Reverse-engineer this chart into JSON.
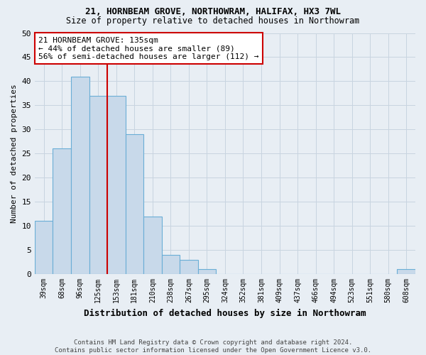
{
  "title1": "21, HORNBEAM GROVE, NORTHOWRAM, HALIFAX, HX3 7WL",
  "title2": "Size of property relative to detached houses in Northowram",
  "xlabel": "Distribution of detached houses by size in Northowram",
  "ylabel": "Number of detached properties",
  "footer1": "Contains HM Land Registry data © Crown copyright and database right 2024.",
  "footer2": "Contains public sector information licensed under the Open Government Licence v3.0.",
  "bin_labels": [
    "39sqm",
    "68sqm",
    "96sqm",
    "125sqm",
    "153sqm",
    "181sqm",
    "210sqm",
    "238sqm",
    "267sqm",
    "295sqm",
    "324sqm",
    "352sqm",
    "381sqm",
    "409sqm",
    "437sqm",
    "466sqm",
    "494sqm",
    "523sqm",
    "551sqm",
    "580sqm",
    "608sqm"
  ],
  "values": [
    11,
    26,
    41,
    37,
    37,
    29,
    12,
    4,
    3,
    1,
    0,
    0,
    0,
    0,
    0,
    0,
    0,
    0,
    0,
    0,
    1
  ],
  "bar_color": "#c8d9ea",
  "bar_edge_color": "#6aaed6",
  "grid_color": "#c8d4e0",
  "background_color": "#e8eef4",
  "red_line_x": 3.5,
  "annotation_title": "21 HORNBEAM GROVE: 135sqm",
  "annotation_line1": "← 44% of detached houses are smaller (89)",
  "annotation_line2": "56% of semi-detached houses are larger (112) →",
  "annotation_box_facecolor": "#ffffff",
  "annotation_box_edgecolor": "#cc0000",
  "red_line_color": "#cc0000",
  "ylim": [
    0,
    50
  ],
  "yticks": [
    0,
    5,
    10,
    15,
    20,
    25,
    30,
    35,
    40,
    45,
    50
  ]
}
